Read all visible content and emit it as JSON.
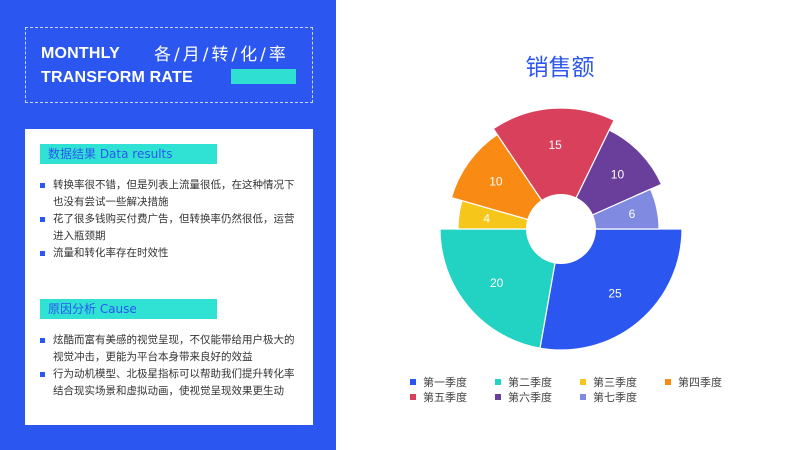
{
  "header": {
    "title_en_line1": "MONTHLY",
    "title_en_line2": "TRANSFORM RATE",
    "title_cn": "各/月/转/化/率"
  },
  "section1": {
    "heading": "数据结果   Data results",
    "items": [
      "转换率很不错，但是列表上流量很低，在这种情况下也没有尝试一些解决措施",
      "花了很多钱购买付费广告，但转换率仍然很低，运营进入瓶颈期",
      "流量和转化率存在时效性"
    ]
  },
  "section2": {
    "heading": "原因分析   Cause",
    "items": [
      "炫酷而富有美感的视觉呈现，不仅能带给用户极大的视觉冲击，更能为平台本身带来良好的效益",
      "行为动机模型、北极星指标可以帮助我们提升转化率结合现实场景和虚拟动画，使视觉呈现效果更生动"
    ]
  },
  "chart_data": {
    "type": "pie",
    "title": "销售额",
    "categories": [
      "第一季度",
      "第二季度",
      "第三季度",
      "第四季度",
      "第五季度",
      "第六季度",
      "第七季度"
    ],
    "values": [
      25,
      20,
      4,
      10,
      15,
      10,
      6
    ],
    "colors": [
      "#2b56f0",
      "#22d2c2",
      "#f7c61b",
      "#f98a14",
      "#d8405c",
      "#6a3f9c",
      "#7f8ae0"
    ],
    "data_labels": [
      "25",
      "20",
      "4",
      "10",
      "15",
      "10",
      "6"
    ],
    "legend_position": "bottom",
    "donut": true
  }
}
